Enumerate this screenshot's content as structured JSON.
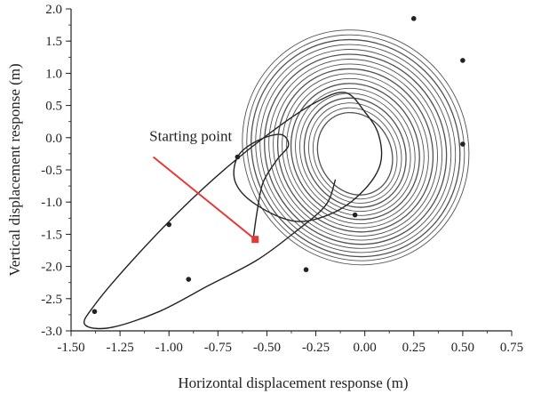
{
  "chart_data": {
    "type": "line",
    "title": "",
    "xlabel": "Horizontal displacement response (m)",
    "ylabel": "Vertical displacement response (m)",
    "xlim": [
      -1.5,
      0.75
    ],
    "ylim": [
      -3.0,
      2.0
    ],
    "x_ticks": [
      -1.5,
      -1.25,
      -1.0,
      -0.75,
      -0.5,
      -0.25,
      0.0,
      0.25,
      0.5,
      0.75
    ],
    "x_tick_labels": [
      "-1.50",
      "-1.25",
      "-1.00",
      "-0.75",
      "-0.50",
      "-0.25",
      "0.00",
      "0.25",
      "0.50",
      "0.75"
    ],
    "y_ticks": [
      2.0,
      1.5,
      1.0,
      0.5,
      0.0,
      -0.5,
      -1.0,
      -1.5,
      -2.0,
      -2.5,
      -3.0
    ],
    "y_tick_labels": [
      "2.0",
      "1.5",
      "1.0",
      "0.5",
      "0.0",
      "-0.5",
      "-1.0",
      "-1.5",
      "-2.0",
      "-2.5",
      "-3.0"
    ],
    "grid": false,
    "legend": "none",
    "series": [
      {
        "color": "#222222",
        "description_points": [
          [
            -0.57,
            -1.58
          ],
          [
            -0.55,
            -1.15
          ],
          [
            -0.52,
            -0.7
          ],
          [
            -0.45,
            -0.35
          ],
          [
            -0.39,
            -0.12
          ],
          [
            -0.43,
            0.05
          ],
          [
            -0.55,
            -0.05
          ],
          [
            -0.65,
            -0.3
          ],
          [
            -0.66,
            -0.7
          ],
          [
            -0.55,
            -1.05
          ],
          [
            -0.35,
            -1.3
          ],
          [
            -0.15,
            -1.15
          ],
          [
            0.0,
            -0.8
          ],
          [
            0.08,
            -0.4
          ],
          [
            0.07,
            0.05
          ],
          [
            0.0,
            0.4
          ],
          [
            -0.1,
            0.7
          ],
          [
            -0.25,
            0.55
          ],
          [
            -0.45,
            0.15
          ],
          [
            -0.7,
            -0.45
          ],
          [
            -0.95,
            -1.15
          ],
          [
            -1.2,
            -1.95
          ],
          [
            -1.38,
            -2.6
          ],
          [
            -1.43,
            -2.9
          ],
          [
            -1.3,
            -2.95
          ],
          [
            -1.05,
            -2.7
          ],
          [
            -0.8,
            -2.3
          ],
          [
            -0.55,
            -1.9
          ],
          [
            -0.35,
            -1.45
          ],
          [
            -0.2,
            -1.05
          ],
          [
            -0.15,
            -0.65
          ]
        ]
      }
    ],
    "orbit": {
      "center": [
        -0.05,
        -0.25
      ],
      "inner_radii": [
        0.2,
        0.75
      ],
      "outer_radii": [
        0.62,
        2.1
      ],
      "tilt_deg": 28,
      "loops": 18
    },
    "annotations": [
      {
        "text": "Starting point",
        "text_at": [
          -1.1,
          -0.05
        ],
        "arrow_from": [
          -1.08,
          -0.3
        ],
        "arrow_to": [
          -0.56,
          -1.58
        ],
        "color": "#e53935"
      }
    ]
  }
}
